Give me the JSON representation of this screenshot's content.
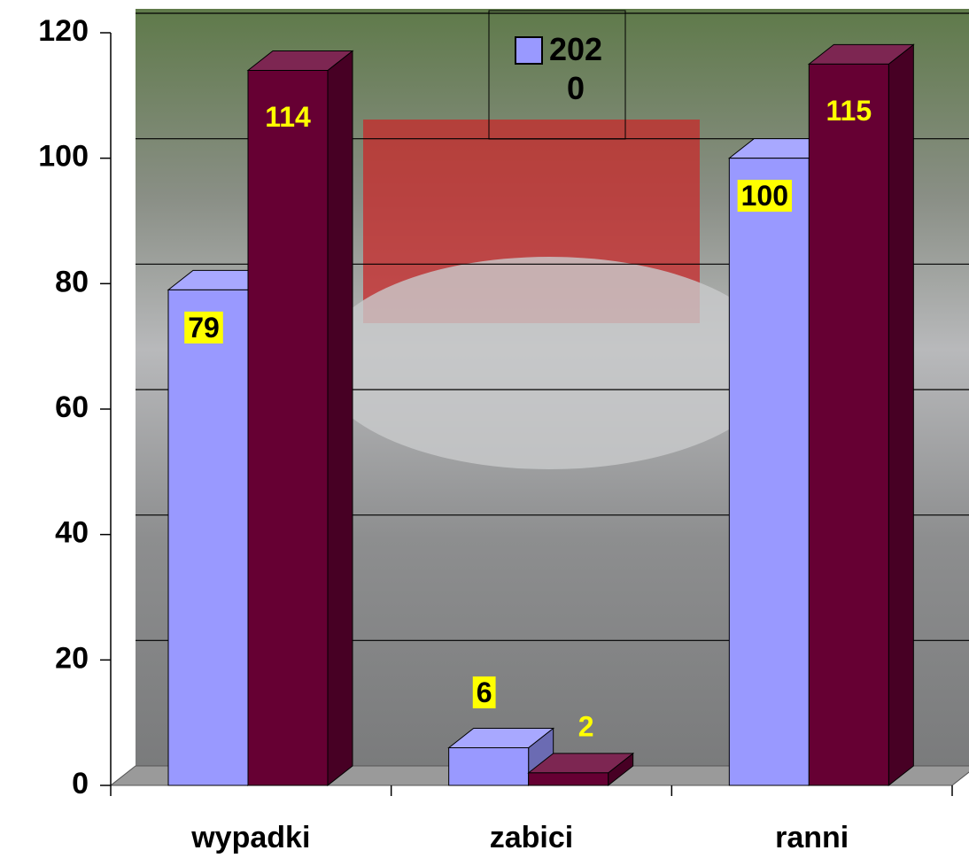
{
  "chart_data": {
    "type": "bar3d",
    "categories": [
      "wypadki",
      "zabici",
      "ranni"
    ],
    "series": [
      {
        "name": "2020",
        "color": "#9999ff",
        "values": [
          79,
          6,
          100
        ]
      },
      {
        "color": "#660033",
        "values": [
          114,
          2,
          115
        ]
      }
    ],
    "ylim": [
      0,
      120
    ],
    "yticks": [
      0,
      20,
      40,
      60,
      80,
      100,
      120
    ],
    "grid": true,
    "legend": "top"
  }
}
